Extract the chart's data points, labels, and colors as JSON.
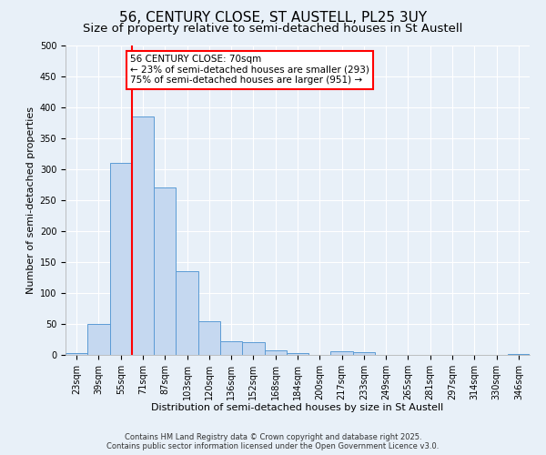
{
  "title1": "56, CENTURY CLOSE, ST AUSTELL, PL25 3UY",
  "title2": "Size of property relative to semi-detached houses in St Austell",
  "xlabel": "Distribution of semi-detached houses by size in St Austell",
  "ylabel": "Number of semi-detached properties",
  "bin_labels": [
    "23sqm",
    "39sqm",
    "55sqm",
    "71sqm",
    "87sqm",
    "103sqm",
    "120sqm",
    "136sqm",
    "152sqm",
    "168sqm",
    "184sqm",
    "200sqm",
    "217sqm",
    "233sqm",
    "249sqm",
    "265sqm",
    "281sqm",
    "297sqm",
    "314sqm",
    "330sqm",
    "346sqm"
  ],
  "bar_values": [
    3,
    50,
    310,
    385,
    270,
    135,
    55,
    22,
    20,
    8,
    3,
    0,
    6,
    5,
    0,
    0,
    0,
    0,
    0,
    0,
    2
  ],
  "bar_color": "#c5d8f0",
  "bar_edge_color": "#5b9bd5",
  "vline_color": "red",
  "vline_x": 2.5,
  "annotation_title": "56 CENTURY CLOSE: 70sqm",
  "annotation_line1": "← 23% of semi-detached houses are smaller (293)",
  "annotation_line2": "75% of semi-detached houses are larger (951) →",
  "annotation_box_color": "#ffffff",
  "annotation_box_edge": "red",
  "ylim": [
    0,
    500
  ],
  "yticks": [
    0,
    50,
    100,
    150,
    200,
    250,
    300,
    350,
    400,
    450,
    500
  ],
  "footer1": "Contains HM Land Registry data © Crown copyright and database right 2025.",
  "footer2": "Contains public sector information licensed under the Open Government Licence v3.0.",
  "bg_color": "#e8f0f8",
  "grid_color": "#ffffff",
  "title1_fontsize": 11,
  "title2_fontsize": 9.5,
  "annotation_fontsize": 7.5,
  "axis_fontsize": 8,
  "tick_fontsize": 7,
  "footer_fontsize": 6
}
